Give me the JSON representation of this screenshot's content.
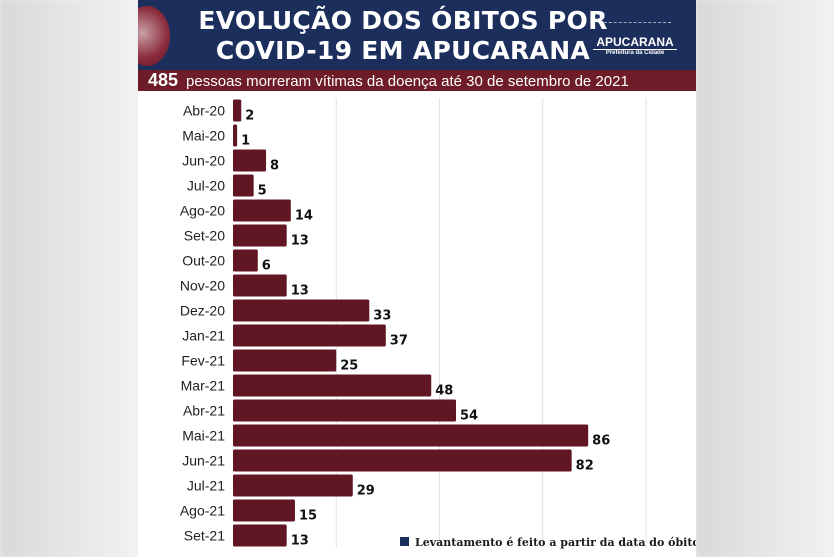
{
  "header": {
    "title_line1": "EVOLUÇÃO DOS ÓBITOS POR",
    "title_line2": "COVID-19 EM APUCARANA",
    "logo_name": "APUCARANA",
    "logo_sub": "Prefeitura da Cidade",
    "total": "485",
    "subtitle": "pessoas morreram vítimas da doença até 30 de setembro de 2021"
  },
  "note": "Levantamento é feito a partir da data do óbito",
  "colors": {
    "bar": "#611623",
    "header": "#1c2f5c",
    "band": "#6e1c27"
  },
  "chart_data": {
    "type": "bar",
    "orientation": "horizontal",
    "categories": [
      "Abr-20",
      "Mai-20",
      "Jun-20",
      "Jul-20",
      "Ago-20",
      "Set-20",
      "Out-20",
      "Nov-20",
      "Dez-20",
      "Jan-21",
      "Fev-21",
      "Mar-21",
      "Abr-21",
      "Mai-21",
      "Jun-21",
      "Jul-21",
      "Ago-21",
      "Set-21"
    ],
    "values": [
      2,
      1,
      8,
      5,
      14,
      13,
      6,
      13,
      33,
      37,
      25,
      48,
      54,
      86,
      82,
      29,
      15,
      13
    ],
    "xlim": [
      0,
      100
    ],
    "grid": true,
    "grid_step": 25
  }
}
